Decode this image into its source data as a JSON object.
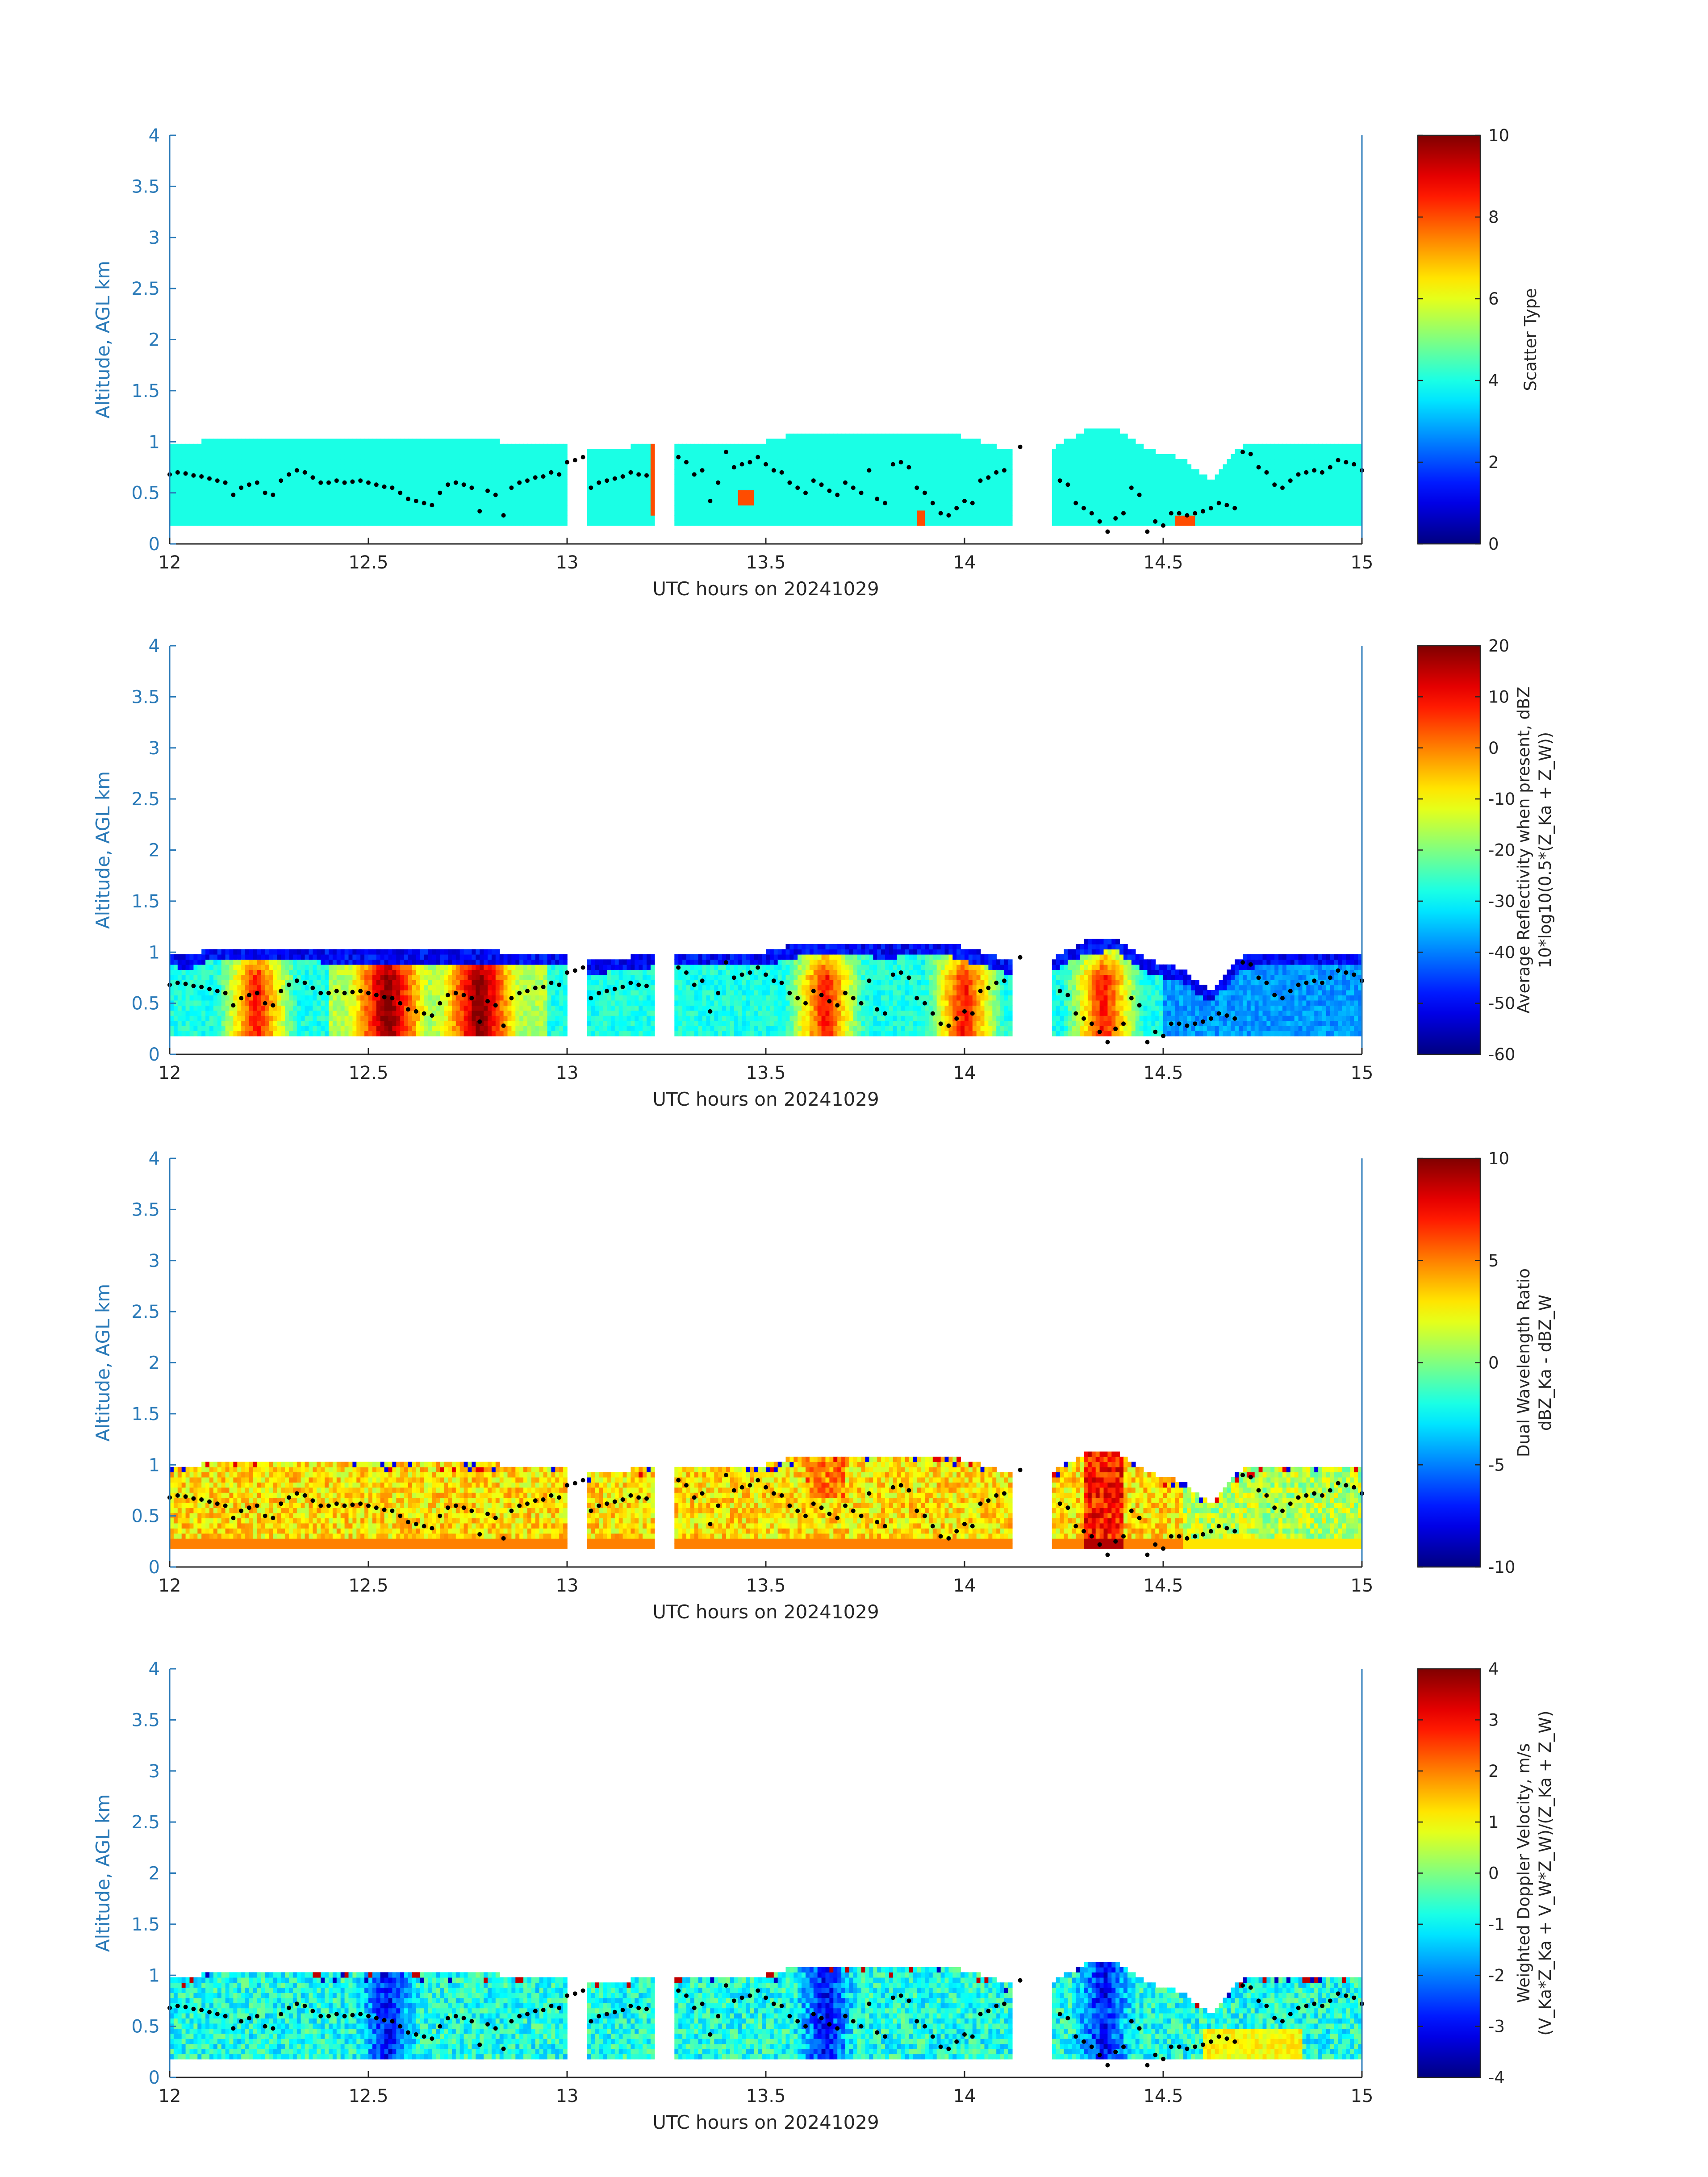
{
  "chart_data": [
    {
      "type": "heatmap",
      "panel": 1,
      "xlabel": "UTC hours on 20241029",
      "ylabel": "Altitude, AGL km",
      "xlim": [
        12,
        15
      ],
      "ylim": [
        0,
        4
      ],
      "xticks": [
        "12",
        "12.5",
        "13",
        "13.5",
        "14",
        "14.5",
        "15"
      ],
      "yticks": [
        "0",
        "0.5",
        "1",
        "1.5",
        "2",
        "2.5",
        "3",
        "3.5",
        "4"
      ],
      "colorbar": {
        "label_lines": [
          "Scatter Type"
        ],
        "range": [
          0,
          10
        ],
        "ticks": [
          "0",
          "2",
          "4",
          "6",
          "8",
          "10"
        ],
        "colormap": "jet"
      },
      "field": "scatter_type",
      "typical_value": 4,
      "outlier_value": 8,
      "cloud_base_km": 0.18,
      "cloud_top_km": 0.98,
      "segments_hours": [
        [
          12.0,
          13.0
        ],
        [
          13.05,
          13.22
        ],
        [
          13.27,
          14.12
        ],
        [
          14.22,
          15.0
        ]
      ]
    },
    {
      "type": "heatmap",
      "panel": 2,
      "xlabel": "UTC hours on 20241029",
      "ylabel": "Altitude, AGL km",
      "xlim": [
        12,
        15
      ],
      "ylim": [
        0,
        4
      ],
      "xticks": [
        "12",
        "12.5",
        "13",
        "13.5",
        "14",
        "14.5",
        "15"
      ],
      "yticks": [
        "0",
        "0.5",
        "1",
        "1.5",
        "2",
        "2.5",
        "3",
        "3.5",
        "4"
      ],
      "colorbar": {
        "label_lines": [
          "Average Reflectivity when present, dBZ",
          "10*log10(0.5*(Z_Ka + Z_W))"
        ],
        "range": [
          -60,
          20
        ],
        "ticks": [
          "-60",
          "-50",
          "-40",
          "-30",
          "-20",
          "-10",
          "0",
          "10",
          "20"
        ],
        "colormap": "jet"
      },
      "field": "reflectivity_dBZ",
      "core_hours": [
        12.22,
        12.55,
        12.78,
        13.65,
        14.0,
        14.35
      ],
      "edge_value": -55,
      "core_value": 8
    },
    {
      "type": "heatmap",
      "panel": 3,
      "xlabel": "UTC hours on 20241029",
      "ylabel": "Altitude, AGL km",
      "xlim": [
        12,
        15
      ],
      "ylim": [
        0,
        4
      ],
      "xticks": [
        "12",
        "12.5",
        "13",
        "13.5",
        "14",
        "14.5",
        "15"
      ],
      "yticks": [
        "0",
        "0.5",
        "1",
        "1.5",
        "2",
        "2.5",
        "3",
        "3.5",
        "4"
      ],
      "colorbar": {
        "label_lines": [
          "Dual Wavelength Ratio",
          "dBZ_Ka - dBZ_W"
        ],
        "range": [
          -10,
          10
        ],
        "ticks": [
          "-10",
          "-5",
          "0",
          "5",
          "10"
        ],
        "colormap": "jet"
      },
      "field": "dual_wavelength_ratio_dB",
      "typical_value": 3,
      "base_row_value": 5,
      "core_hours": [
        14.35
      ]
    },
    {
      "type": "heatmap",
      "panel": 4,
      "xlabel": "UTC hours on 20241029",
      "ylabel": "Altitude, AGL km",
      "xlim": [
        12,
        15
      ],
      "ylim": [
        0,
        4
      ],
      "xticks": [
        "12",
        "12.5",
        "13",
        "13.5",
        "14",
        "14.5",
        "15"
      ],
      "yticks": [
        "0",
        "0.5",
        "1",
        "1.5",
        "2",
        "2.5",
        "3",
        "3.5",
        "4"
      ],
      "colorbar": {
        "label_lines": [
          "Weighted Doppler Velocity, m/s",
          "(V_Ka*Z_Ka + V_W*Z_W)/(Z_Ka + Z_W)"
        ],
        "range": [
          -4,
          4
        ],
        "ticks": [
          "-4",
          "-3",
          "-2",
          "-1",
          "0",
          "1",
          "2",
          "3",
          "4"
        ],
        "colormap": "jet"
      },
      "field": "weighted_doppler_velocity_ms",
      "typical_value": -0.8,
      "downdraft_hours": [
        12.55,
        13.65,
        14.35
      ]
    }
  ],
  "overlay": {
    "description_series": "cloud base points (black dots)",
    "hours": [
      12.0,
      12.02,
      12.04,
      12.06,
      12.08,
      12.1,
      12.12,
      12.14,
      12.16,
      12.18,
      12.2,
      12.22,
      12.24,
      12.26,
      12.28,
      12.3,
      12.32,
      12.34,
      12.36,
      12.38,
      12.4,
      12.42,
      12.44,
      12.46,
      12.48,
      12.5,
      12.52,
      12.54,
      12.56,
      12.58,
      12.6,
      12.62,
      12.64,
      12.66,
      12.68,
      12.7,
      12.72,
      12.74,
      12.76,
      12.78,
      12.8,
      12.82,
      12.84,
      12.86,
      12.88,
      12.9,
      12.92,
      12.94,
      12.96,
      12.98,
      13.0,
      13.02,
      13.04,
      13.06,
      13.08,
      13.1,
      13.12,
      13.14,
      13.16,
      13.18,
      13.2,
      13.28,
      13.3,
      13.32,
      13.34,
      13.36,
      13.38,
      13.4,
      13.42,
      13.44,
      13.46,
      13.48,
      13.5,
      13.52,
      13.54,
      13.56,
      13.58,
      13.6,
      13.62,
      13.64,
      13.66,
      13.68,
      13.7,
      13.72,
      13.74,
      13.76,
      13.78,
      13.8,
      13.82,
      13.84,
      13.86,
      13.88,
      13.9,
      13.92,
      13.94,
      13.96,
      13.98,
      14.0,
      14.02,
      14.04,
      14.06,
      14.08,
      14.1,
      14.14,
      14.24,
      14.26,
      14.28,
      14.3,
      14.32,
      14.34,
      14.36,
      14.38,
      14.4,
      14.42,
      14.44,
      14.46,
      14.48,
      14.5,
      14.52,
      14.54,
      14.56,
      14.58,
      14.6,
      14.62,
      14.64,
      14.66,
      14.68,
      14.7,
      14.72,
      14.74,
      14.76,
      14.78,
      14.8,
      14.82,
      14.84,
      14.86,
      14.88,
      14.9,
      14.92,
      14.94,
      14.96,
      14.98,
      15.0
    ],
    "altitude_km": [
      0.68,
      0.7,
      0.69,
      0.67,
      0.66,
      0.64,
      0.62,
      0.6,
      0.48,
      0.55,
      0.58,
      0.6,
      0.5,
      0.48,
      0.62,
      0.68,
      0.72,
      0.7,
      0.65,
      0.6,
      0.6,
      0.62,
      0.6,
      0.61,
      0.62,
      0.6,
      0.58,
      0.56,
      0.55,
      0.5,
      0.44,
      0.42,
      0.4,
      0.38,
      0.5,
      0.58,
      0.6,
      0.58,
      0.55,
      0.32,
      0.52,
      0.48,
      0.28,
      0.55,
      0.6,
      0.62,
      0.65,
      0.66,
      0.7,
      0.68,
      0.8,
      0.82,
      0.85,
      0.55,
      0.6,
      0.62,
      0.64,
      0.66,
      0.7,
      0.68,
      0.67,
      0.85,
      0.8,
      0.68,
      0.72,
      0.42,
      0.6,
      0.9,
      0.75,
      0.78,
      0.8,
      0.85,
      0.78,
      0.72,
      0.7,
      0.6,
      0.55,
      0.5,
      0.62,
      0.58,
      0.52,
      0.48,
      0.6,
      0.55,
      0.5,
      0.72,
      0.44,
      0.4,
      0.78,
      0.8,
      0.75,
      0.55,
      0.5,
      0.4,
      0.3,
      0.28,
      0.35,
      0.42,
      0.4,
      0.62,
      0.65,
      0.7,
      0.72,
      0.95,
      0.62,
      0.58,
      0.4,
      0.35,
      0.3,
      0.22,
      0.12,
      0.25,
      0.3,
      0.55,
      0.48,
      0.12,
      0.22,
      0.18,
      0.3,
      0.3,
      0.28,
      0.3,
      0.32,
      0.35,
      0.4,
      0.38,
      0.35,
      0.9,
      0.88,
      0.75,
      0.7,
      0.58,
      0.55,
      0.62,
      0.68,
      0.7,
      0.72,
      0.7,
      0.75,
      0.82,
      0.8,
      0.78,
      0.72
    ]
  }
}
